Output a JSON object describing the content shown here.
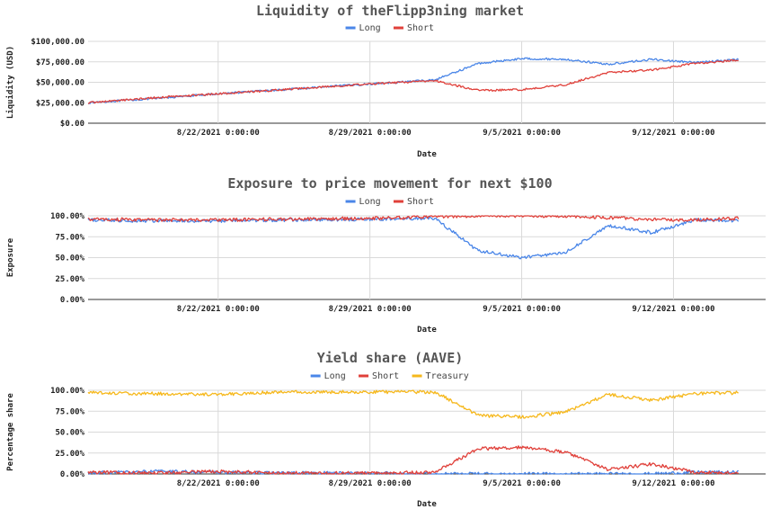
{
  "colors": {
    "long": "#4a86e8",
    "short": "#e0403a",
    "treasury": "#f6b81c",
    "grid": "#d9d9d9",
    "baseline": "#333333"
  },
  "chart_data": [
    {
      "type": "line",
      "title": "Liquidity of theFlipp3ning market",
      "xlabel": "Date",
      "ylabel": "Liquidity (USD)",
      "legend": "top",
      "grid": true,
      "ylim": [
        0,
        100000
      ],
      "x_ticks": [
        "8/22/2021 0:00:00",
        "8/29/2021 0:00:00",
        "9/5/2021 0:00:00",
        "9/12/2021 0:00:00"
      ],
      "y_ticks": [
        "$0.00",
        "$25,000.00",
        "$50,000.00",
        "$75,000.00",
        "$100,000.00"
      ],
      "series": [
        {
          "name": "Long",
          "x": [
            "8/16/2021",
            "8/19/2021",
            "8/22/2021",
            "8/25/2021",
            "8/29/2021",
            "9/1/2021",
            "9/3/2021",
            "9/5/2021",
            "9/7/2021",
            "9/9/2021",
            "9/11/2021",
            "9/13/2021",
            "9/15/2021"
          ],
          "values": [
            25000,
            30000,
            36000,
            41000,
            48000,
            53000,
            73000,
            79000,
            78000,
            72000,
            78000,
            74000,
            78000
          ]
        },
        {
          "name": "Short",
          "x": [
            "8/16/2021",
            "8/19/2021",
            "8/22/2021",
            "8/25/2021",
            "8/29/2021",
            "9/1/2021",
            "9/3/2021",
            "9/5/2021",
            "9/7/2021",
            "9/9/2021",
            "9/11/2021",
            "9/13/2021",
            "9/15/2021"
          ],
          "values": [
            25000,
            31000,
            36000,
            41000,
            48000,
            52000,
            40000,
            41000,
            47000,
            62000,
            65000,
            73000,
            77000
          ]
        }
      ]
    },
    {
      "type": "line",
      "title": "Exposure to price movement for next $100",
      "xlabel": "Date",
      "ylabel": "Exposure",
      "legend": "top",
      "grid": true,
      "ylim": [
        0,
        1
      ],
      "x_ticks": [
        "8/22/2021 0:00:00",
        "8/29/2021 0:00:00",
        "9/5/2021 0:00:00",
        "9/12/2021 0:00:00"
      ],
      "y_ticks": [
        "0.00%",
        "25.00%",
        "50.00%",
        "75.00%",
        "100.00%"
      ],
      "series": [
        {
          "name": "Long",
          "x": [
            "8/16/2021",
            "8/19/2021",
            "8/22/2021",
            "8/25/2021",
            "8/29/2021",
            "9/1/2021",
            "9/3/2021",
            "9/5/2021",
            "9/7/2021",
            "9/9/2021",
            "9/11/2021",
            "9/13/2021",
            "9/15/2021"
          ],
          "values": [
            0.95,
            0.94,
            0.94,
            0.95,
            0.96,
            0.97,
            0.58,
            0.5,
            0.56,
            0.88,
            0.8,
            0.95,
            0.94
          ]
        },
        {
          "name": "Short",
          "x": [
            "8/16/2021",
            "8/19/2021",
            "8/22/2021",
            "8/25/2021",
            "8/29/2021",
            "9/1/2021",
            "9/3/2021",
            "9/5/2021",
            "9/7/2021",
            "9/9/2021",
            "9/11/2021",
            "9/13/2021",
            "9/15/2021"
          ],
          "values": [
            0.96,
            0.95,
            0.95,
            0.96,
            0.97,
            0.99,
            1.0,
            1.0,
            1.0,
            0.98,
            0.96,
            0.95,
            0.97
          ]
        }
      ]
    },
    {
      "type": "line",
      "title": "Yield share (AAVE)",
      "xlabel": "Date",
      "ylabel": "Percentage share",
      "legend": "top",
      "grid": true,
      "ylim": [
        0,
        1
      ],
      "x_ticks": [
        "8/22/2021 0:00:00",
        "8/29/2021 0:00:00",
        "9/5/2021 0:00:00",
        "9/12/2021 0:00:00"
      ],
      "y_ticks": [
        "0.00%",
        "25.00%",
        "50.00%",
        "75.00%",
        "100.00%"
      ],
      "series": [
        {
          "name": "Long",
          "x": [
            "8/16/2021",
            "8/19/2021",
            "8/22/2021",
            "8/25/2021",
            "8/29/2021",
            "9/1/2021",
            "9/3/2021",
            "9/5/2021",
            "9/7/2021",
            "9/9/2021",
            "9/11/2021",
            "9/13/2021",
            "9/15/2021"
          ],
          "values": [
            0.01,
            0.03,
            0.02,
            0.01,
            0.01,
            0.0,
            0.0,
            0.0,
            0.0,
            0.0,
            0.0,
            0.02,
            0.02
          ]
        },
        {
          "name": "Short",
          "x": [
            "8/16/2021",
            "8/19/2021",
            "8/22/2021",
            "8/25/2021",
            "8/29/2021",
            "9/1/2021",
            "9/3/2021",
            "9/5/2021",
            "9/7/2021",
            "9/9/2021",
            "9/11/2021",
            "9/13/2021",
            "9/15/2021"
          ],
          "values": [
            0.02,
            0.01,
            0.03,
            0.01,
            0.01,
            0.02,
            0.3,
            0.32,
            0.26,
            0.05,
            0.12,
            0.02,
            0.01
          ]
        },
        {
          "name": "Treasury",
          "x": [
            "8/16/2021",
            "8/19/2021",
            "8/22/2021",
            "8/25/2021",
            "8/29/2021",
            "9/1/2021",
            "9/3/2021",
            "9/5/2021",
            "9/7/2021",
            "9/9/2021",
            "9/11/2021",
            "9/13/2021",
            "9/15/2021"
          ],
          "values": [
            0.97,
            0.96,
            0.95,
            0.98,
            0.98,
            0.98,
            0.7,
            0.68,
            0.74,
            0.95,
            0.88,
            0.96,
            0.97
          ]
        }
      ]
    }
  ]
}
